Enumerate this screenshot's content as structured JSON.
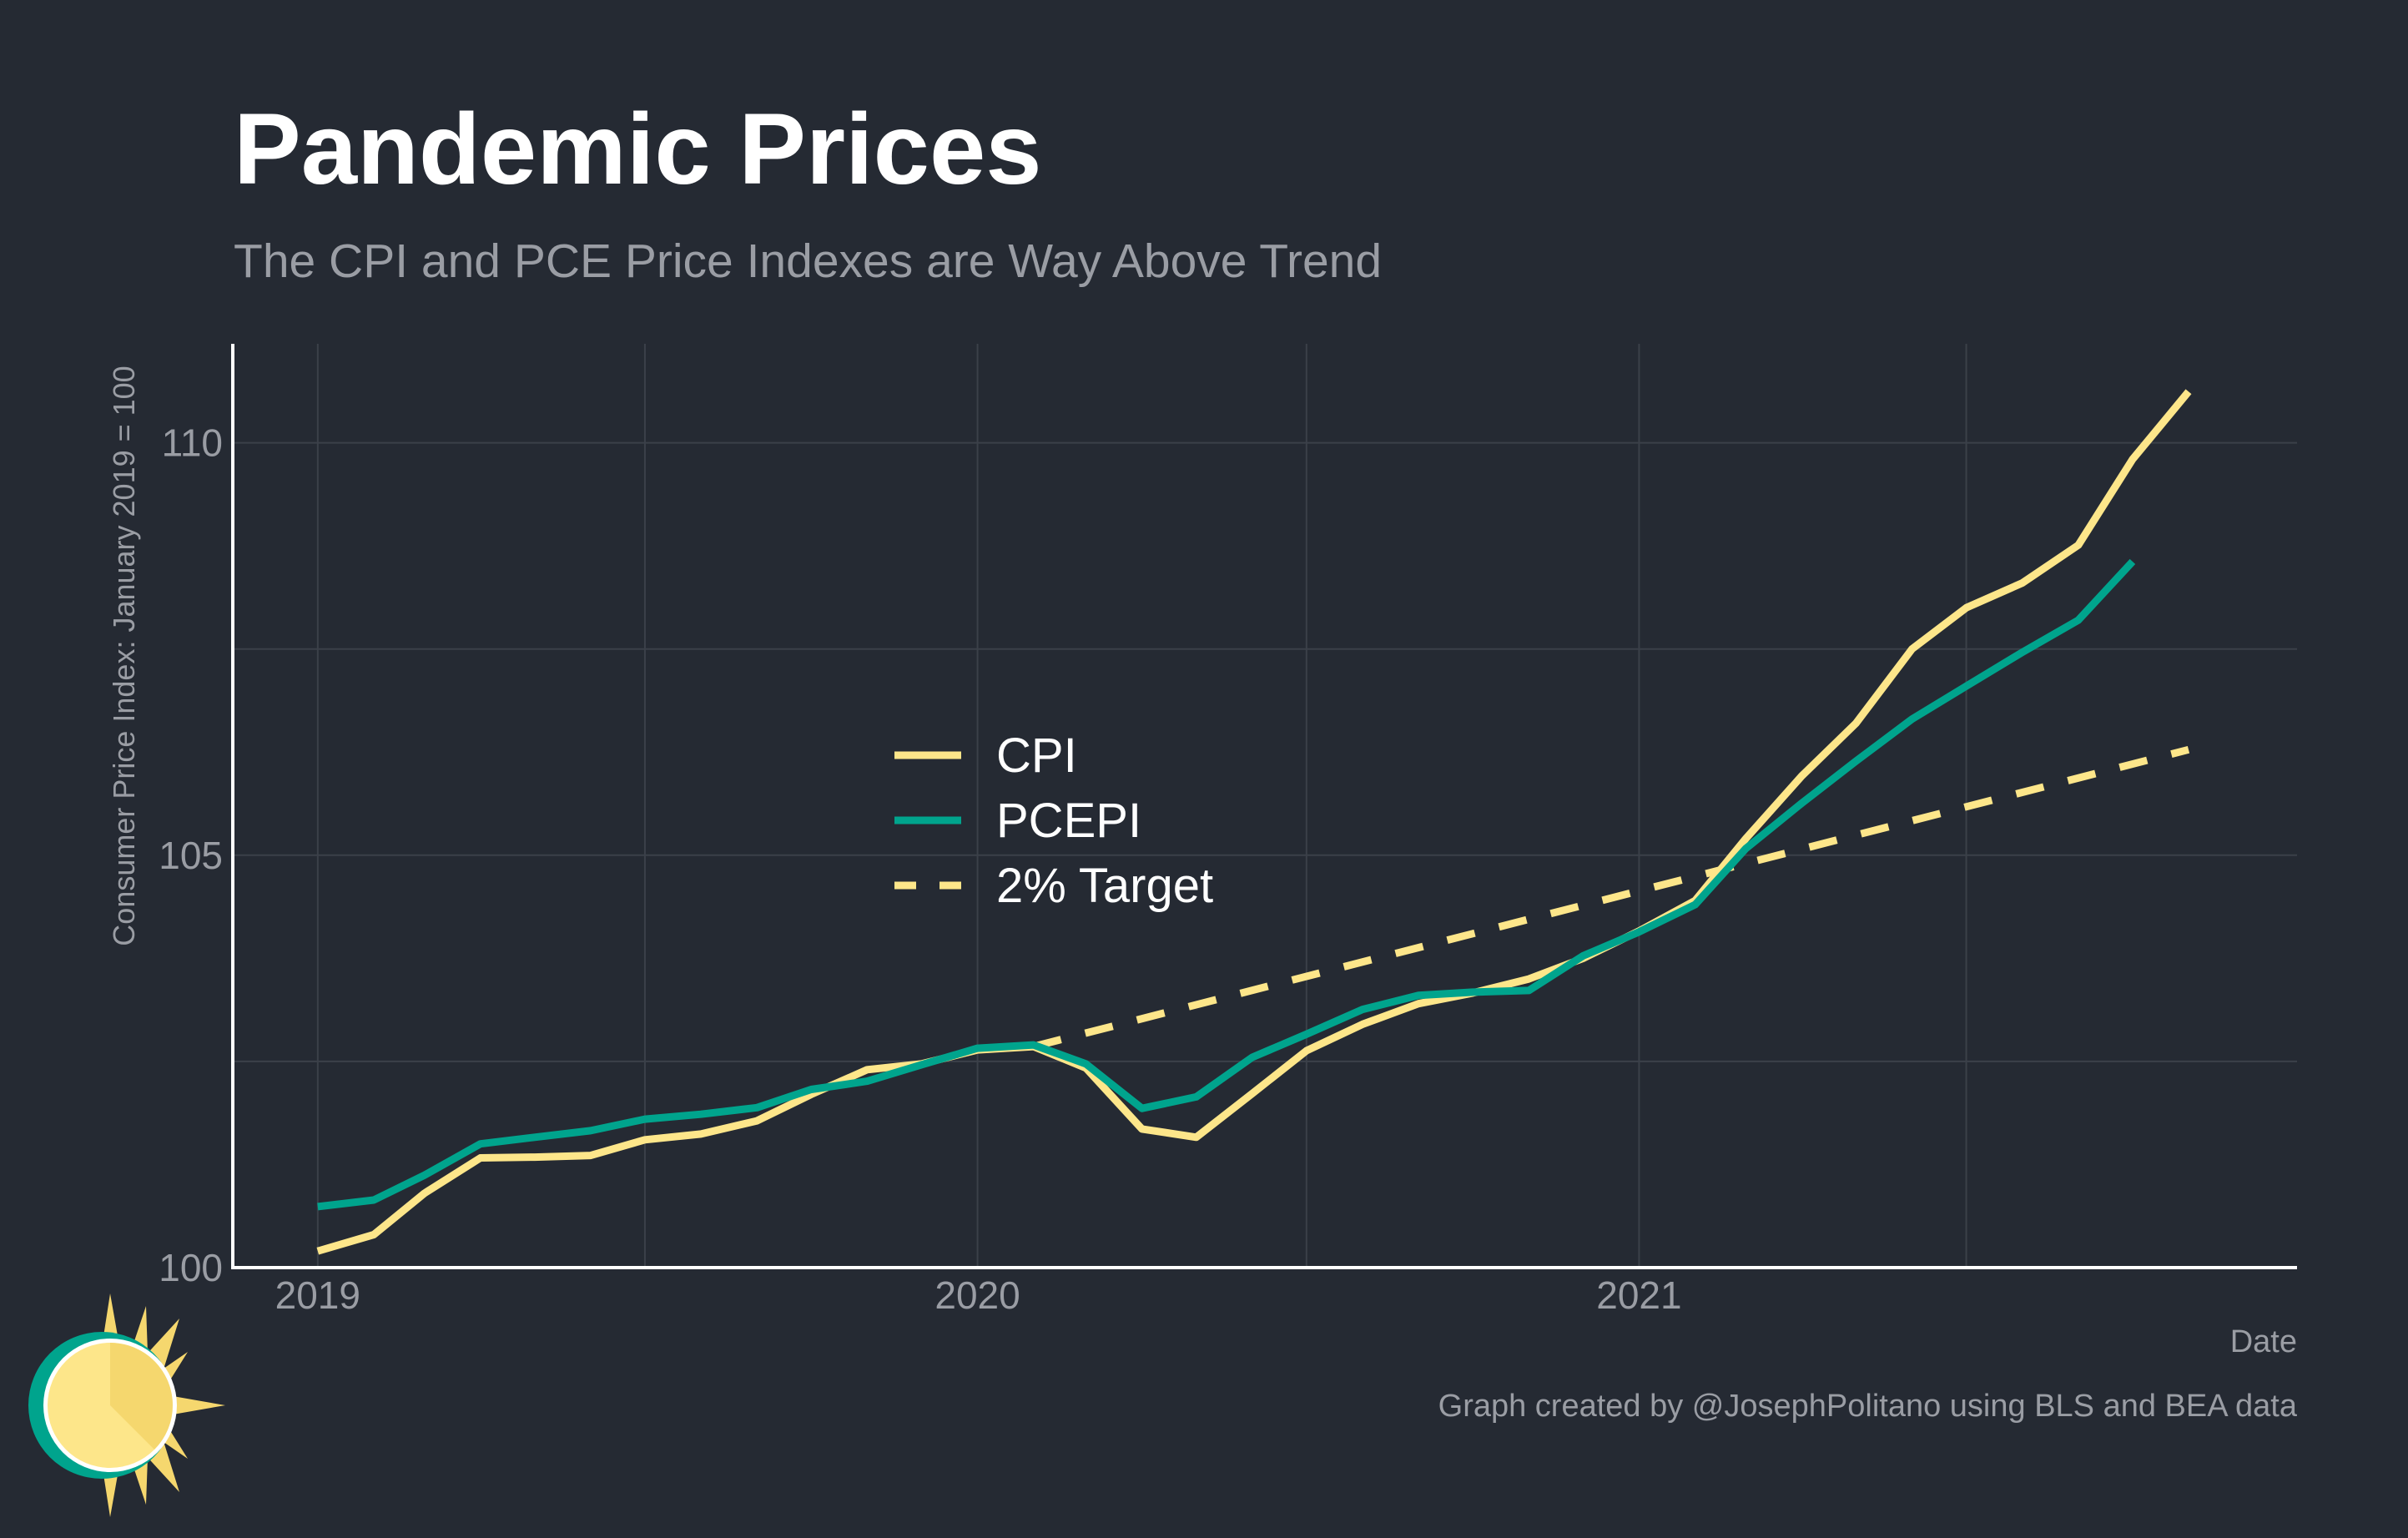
{
  "title": "Pandemic Prices",
  "subtitle": "The CPI and PCE Price Indexes are Way Above Trend",
  "caption": "Graph created by @JosephPolitano using BLS and BEA data",
  "colors": {
    "background": "#252a33",
    "cpi": "#fde68a",
    "pcepi": "#00a48d",
    "target": "#fde68a",
    "grid": "#3b4049",
    "axis": "#ffffff",
    "text_muted": "#9a9da4"
  },
  "icons": [
    "sun-logo-icon"
  ],
  "chart_data": {
    "type": "line",
    "title": "Pandemic Prices",
    "subtitle": "The CPI and PCE Price Indexes are Way Above Trend",
    "xlabel": "Date",
    "ylabel": "Consumer Price Index: January 2019 = 100",
    "xlim": [
      "2018-11-15",
      "2021-12-31"
    ],
    "ylim": [
      100,
      111.2
    ],
    "x_ticks": [
      "2019",
      "2020",
      "2021"
    ],
    "x_tick_dates": [
      "2019-01-01",
      "2020-01-01",
      "2021-01-01"
    ],
    "y_ticks": [
      100,
      105,
      110
    ],
    "grid": true,
    "legend_position": "center",
    "series": [
      {
        "name": "CPI",
        "style": "solid",
        "x": [
          "2019-01-01",
          "2019-02-01",
          "2019-03-01",
          "2019-04-01",
          "2019-05-01",
          "2019-06-01",
          "2019-07-01",
          "2019-08-01",
          "2019-09-01",
          "2019-10-01",
          "2019-11-01",
          "2019-12-01",
          "2020-01-01",
          "2020-02-01",
          "2020-03-01",
          "2020-04-01",
          "2020-05-01",
          "2020-06-01",
          "2020-07-01",
          "2020-08-01",
          "2020-09-01",
          "2020-10-01",
          "2020-11-01",
          "2020-12-01",
          "2021-01-01",
          "2021-02-01",
          "2021-03-01",
          "2021-04-01",
          "2021-05-01",
          "2021-06-01",
          "2021-07-01",
          "2021-08-01",
          "2021-09-01",
          "2021-10-01",
          "2021-11-01"
        ],
        "values": [
          100.2,
          100.4,
          100.9,
          101.33,
          101.34,
          101.36,
          101.55,
          101.62,
          101.78,
          102.1,
          102.4,
          102.47,
          102.64,
          102.68,
          102.42,
          101.68,
          101.58,
          102.11,
          102.63,
          102.95,
          103.2,
          103.33,
          103.5,
          103.75,
          104.08,
          104.45,
          105.2,
          105.96,
          106.6,
          107.5,
          108.0,
          108.3,
          108.76,
          109.8,
          110.62
        ]
      },
      {
        "name": "PCEPI",
        "style": "solid",
        "x": [
          "2019-01-01",
          "2019-02-01",
          "2019-03-01",
          "2019-04-01",
          "2019-05-01",
          "2019-06-01",
          "2019-07-01",
          "2019-08-01",
          "2019-09-01",
          "2019-10-01",
          "2019-11-01",
          "2019-12-01",
          "2020-01-01",
          "2020-02-01",
          "2020-03-01",
          "2020-04-01",
          "2020-05-01",
          "2020-06-01",
          "2020-07-01",
          "2020-08-01",
          "2020-09-01",
          "2020-10-01",
          "2020-11-01",
          "2020-12-01",
          "2021-01-01",
          "2021-02-01",
          "2021-03-01",
          "2021-04-01",
          "2021-05-01",
          "2021-06-01",
          "2021-07-01",
          "2021-08-01",
          "2021-09-01",
          "2021-10-01"
        ],
        "values": [
          100.74,
          100.82,
          101.12,
          101.5,
          101.58,
          101.66,
          101.8,
          101.86,
          101.94,
          102.16,
          102.26,
          102.46,
          102.66,
          102.7,
          102.47,
          101.93,
          102.07,
          102.55,
          102.83,
          103.13,
          103.3,
          103.34,
          103.36,
          103.78,
          104.07,
          104.4,
          105.08,
          105.63,
          106.14,
          106.65,
          107.05,
          107.46,
          107.85,
          108.56
        ]
      },
      {
        "name": "2% Target",
        "style": "dashed",
        "x": [
          "2020-02-01",
          "2021-11-01"
        ],
        "values": [
          102.68,
          106.28
        ]
      }
    ]
  }
}
